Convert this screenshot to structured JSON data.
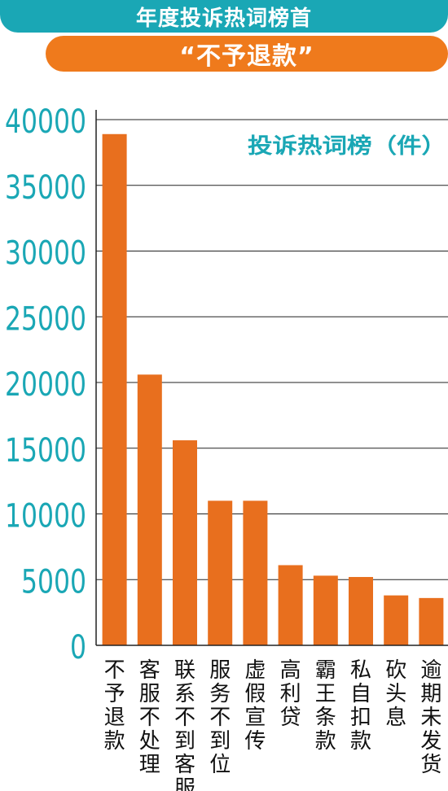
{
  "header": {
    "banner_title": "年度投诉热词榜首",
    "banner_subtitle": "“不予退款”"
  },
  "colors": {
    "teal": "#1aa7b5",
    "orange": "#ef7a1c",
    "bar": "#e86f1e",
    "axis": "#222222"
  },
  "chart_data": {
    "type": "bar",
    "title": "投诉热词榜（件）",
    "xlabel": "",
    "ylabel": "",
    "ylim": [
      0,
      40000
    ],
    "yticks": [
      0,
      5000,
      10000,
      15000,
      20000,
      25000,
      30000,
      35000,
      40000
    ],
    "grid": true,
    "categories": [
      "不予退款",
      "客服不处理",
      "联系不到客服",
      "服务不到位",
      "虚假宣传",
      "高利贷",
      "霸王条款",
      "私自扣款",
      "砍头息",
      "逾期未发货"
    ],
    "values": [
      38900,
      20600,
      15600,
      11000,
      11000,
      6100,
      5300,
      5200,
      3800,
      3600
    ]
  }
}
